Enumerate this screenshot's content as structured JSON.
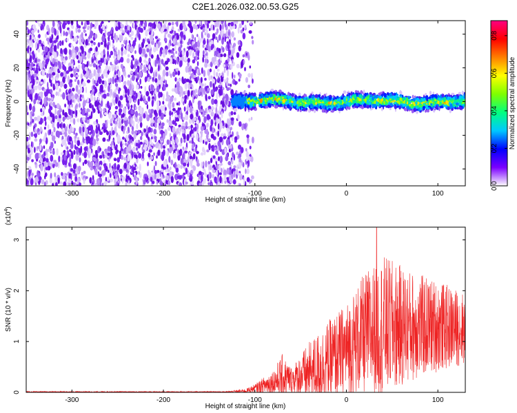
{
  "title": "C2E1.2026.032.00.53.G25",
  "chart_data": [
    {
      "type": "heatmap",
      "title": "C2E1.2026.032.00.53.G25",
      "xlabel": "Height of straight line (km)",
      "ylabel": "Frequency (Hz)",
      "xlim": [
        -350,
        130
      ],
      "ylim": [
        -50,
        48
      ],
      "xticks": [
        -300,
        -200,
        -100,
        0,
        100
      ],
      "yticks": [
        -40,
        -20,
        0,
        20,
        40
      ],
      "xtick_labels": [
        "-300",
        "-200",
        "-100",
        "0",
        "100"
      ],
      "ytick_labels": [
        "-40",
        "-20",
        "0",
        "20",
        "40"
      ],
      "noise_region_x": [
        -350,
        -110
      ],
      "signal_band": {
        "x_range": [
          -125,
          130
        ],
        "center_hz": 0,
        "halfwidth_hz": 6
      },
      "colorbar": {
        "label": "Normalized spectral amplitude",
        "range": [
          0,
          0.88
        ],
        "ticks": [
          0.0,
          0.2,
          0.4,
          0.6,
          0.8
        ],
        "tick_labels": [
          "0.0",
          "0.2",
          "0.4",
          "0.6",
          "0.8"
        ],
        "colors": [
          "#ffffff",
          "#7b00ff",
          "#0000ff",
          "#00c8ff",
          "#00ff7f",
          "#7fff00",
          "#ffff00",
          "#ff7f00",
          "#ff0000",
          "#ff0080"
        ]
      }
    },
    {
      "type": "line",
      "xlabel": "Height of straight line (km)",
      "ylabel": "SNR (10 * v/v)",
      "y_multiplier": "(x10",
      "y_multiplier_exp": "4",
      "y_multiplier_close": ")",
      "xlim": [
        -350,
        130
      ],
      "ylim": [
        0,
        3.25
      ],
      "xticks": [
        -300,
        -200,
        -100,
        0,
        100
      ],
      "yticks": [
        0,
        1,
        2,
        3
      ],
      "xtick_labels": [
        "-300",
        "-200",
        "-100",
        "0",
        "100"
      ],
      "ytick_labels": [
        "0",
        "1",
        "2",
        "3"
      ],
      "color": "#ee2222",
      "envelope": [
        {
          "x": -350,
          "mean": 0.01,
          "amp": 0.01
        },
        {
          "x": -130,
          "mean": 0.01,
          "amp": 0.01
        },
        {
          "x": -110,
          "mean": 0.03,
          "amp": 0.04
        },
        {
          "x": -100,
          "mean": 0.08,
          "amp": 0.08
        },
        {
          "x": -80,
          "mean": 0.2,
          "amp": 0.25
        },
        {
          "x": -70,
          "mean": 0.3,
          "amp": 0.45
        },
        {
          "x": -60,
          "mean": 0.25,
          "amp": 0.25
        },
        {
          "x": -40,
          "mean": 0.4,
          "amp": 0.6
        },
        {
          "x": -20,
          "mean": 0.6,
          "amp": 0.8
        },
        {
          "x": 0,
          "mean": 0.85,
          "amp": 0.9
        },
        {
          "x": 20,
          "mean": 1.15,
          "amp": 1.2
        },
        {
          "x": 40,
          "mean": 1.3,
          "amp": 1.4
        },
        {
          "x": 70,
          "mean": 1.3,
          "amp": 1.1
        },
        {
          "x": 100,
          "mean": 1.3,
          "amp": 0.9
        },
        {
          "x": 130,
          "mean": 1.25,
          "amp": 0.7
        }
      ],
      "peak": {
        "x": 33,
        "y": 3.25
      }
    }
  ]
}
